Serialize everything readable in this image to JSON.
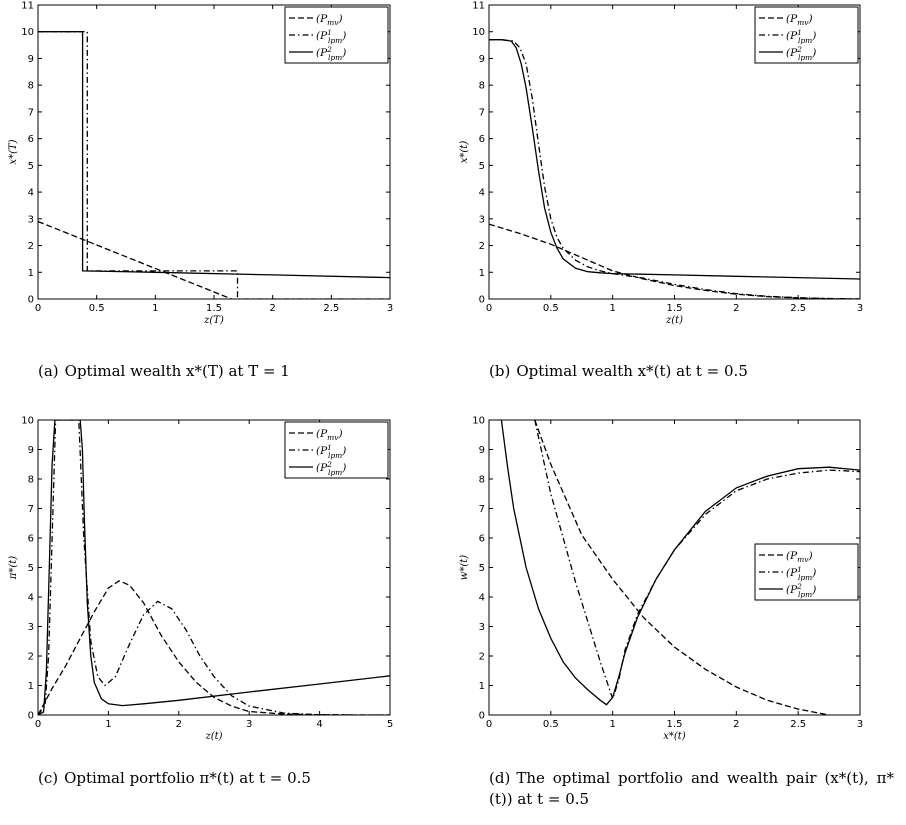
{
  "chart_data": [
    {
      "type": "line",
      "id": "a",
      "caption_label": "(a)",
      "caption": "Optimal wealth x*(T) at T = 1",
      "xlabel": "z(T)",
      "ylabel": "x*(T)",
      "xlim": [
        0,
        3
      ],
      "ylim": [
        0,
        11
      ],
      "xticks": [
        "0",
        "0.5",
        "1",
        "1.5",
        "2",
        "2.5",
        "3"
      ],
      "yticks": [
        "0",
        "1",
        "2",
        "3",
        "4",
        "5",
        "6",
        "7",
        "8",
        "9",
        "10",
        "11"
      ],
      "legend_position": "top-right",
      "series": [
        {
          "name": "(P_mv)",
          "style": "dashed",
          "x": [
            0,
            1.65
          ],
          "y": [
            2.9,
            0
          ]
        },
        {
          "name": "(P^1_lpm)",
          "style": "dashdot",
          "x": [
            0,
            0.42,
            0.42,
            1.7,
            1.7,
            3
          ],
          "y": [
            10,
            10,
            1.05,
            1.05,
            0,
            0
          ]
        },
        {
          "name": "(P^2_lpm)",
          "style": "solid",
          "x": [
            0,
            0.38,
            0.38,
            1.0,
            2.0,
            3.0
          ],
          "y": [
            10,
            10,
            1.05,
            1.0,
            0.9,
            0.8
          ]
        }
      ]
    },
    {
      "type": "line",
      "id": "b",
      "caption_label": "(b)",
      "caption": "Optimal wealth x*(t) at t = 0.5",
      "xlabel": "z(t)",
      "ylabel": "x*(t)",
      "xlim": [
        0,
        3
      ],
      "ylim": [
        0,
        11
      ],
      "xticks": [
        "0",
        "0.5",
        "1",
        "1.5",
        "2",
        "2.5",
        "3"
      ],
      "yticks": [
        "0",
        "1",
        "2",
        "3",
        "4",
        "5",
        "6",
        "7",
        "8",
        "9",
        "10",
        "11"
      ],
      "legend_position": "top-right",
      "series": [
        {
          "name": "(P_mv)",
          "style": "dashed",
          "x": [
            0,
            0.25,
            0.5,
            0.75,
            1.0,
            1.25,
            1.5,
            1.75,
            2.0,
            2.25,
            2.5,
            2.75,
            3.0
          ],
          "y": [
            2.8,
            2.45,
            2.05,
            1.55,
            1.05,
            0.75,
            0.5,
            0.32,
            0.18,
            0.09,
            0.04,
            0.01,
            0
          ]
        },
        {
          "name": "(P^1_lpm)",
          "style": "dashdot",
          "x": [
            0,
            0.1,
            0.2,
            0.25,
            0.3,
            0.35,
            0.4,
            0.45,
            0.5,
            0.55,
            0.6,
            0.7,
            0.8,
            0.9,
            1.0,
            1.25,
            1.5,
            1.75,
            2.0,
            2.25,
            2.5,
            2.75,
            3.0
          ],
          "y": [
            9.7,
            9.7,
            9.65,
            9.4,
            8.8,
            7.5,
            5.8,
            4.2,
            3.0,
            2.3,
            1.9,
            1.45,
            1.2,
            1.05,
            0.95,
            0.78,
            0.55,
            0.35,
            0.2,
            0.1,
            0.05,
            0.02,
            0
          ]
        },
        {
          "name": "(P^2_lpm)",
          "style": "solid",
          "x": [
            0,
            0.1,
            0.18,
            0.22,
            0.26,
            0.3,
            0.35,
            0.4,
            0.45,
            0.5,
            0.55,
            0.6,
            0.7,
            0.8,
            0.9,
            1.0,
            1.5,
            2.0,
            2.5,
            3.0
          ],
          "y": [
            9.7,
            9.7,
            9.65,
            9.4,
            8.8,
            7.9,
            6.4,
            4.8,
            3.4,
            2.5,
            1.9,
            1.5,
            1.15,
            1.02,
            0.98,
            0.95,
            0.9,
            0.85,
            0.8,
            0.75
          ]
        }
      ]
    },
    {
      "type": "line",
      "id": "c",
      "caption_label": "(c)",
      "caption": "Optimal portfolio π*(t) at t = 0.5",
      "xlabel": "z(t)",
      "ylabel": "π*(t)",
      "xlim": [
        0,
        5
      ],
      "ylim": [
        0,
        10
      ],
      "xticks": [
        "0",
        "1",
        "2",
        "3",
        "4",
        "5"
      ],
      "yticks": [
        "0",
        "1",
        "2",
        "3",
        "4",
        "5",
        "6",
        "7",
        "8",
        "9",
        "10"
      ],
      "legend_position": "top-right",
      "series": [
        {
          "name": "(P_mv)",
          "style": "dashed",
          "x": [
            0,
            0.2,
            0.4,
            0.6,
            0.8,
            1.0,
            1.15,
            1.3,
            1.5,
            1.75,
            2.0,
            2.25,
            2.5,
            2.75,
            3.0,
            3.5,
            4.0,
            4.5,
            5.0
          ],
          "y": [
            0,
            0.9,
            1.7,
            2.6,
            3.5,
            4.3,
            4.55,
            4.4,
            3.8,
            2.7,
            1.8,
            1.1,
            0.6,
            0.3,
            0.12,
            0.03,
            0.01,
            0,
            0
          ]
        },
        {
          "name": "(P^1_lpm)",
          "style": "dashdot",
          "x": [
            0,
            0.1,
            0.15,
            0.2,
            0.25,
            0.3,
            0.4,
            0.5,
            0.58,
            0.65,
            0.75,
            0.85,
            0.95,
            1.1,
            1.3,
            1.5,
            1.7,
            1.9,
            2.1,
            2.3,
            2.5,
            2.75,
            3.0,
            3.5,
            4.0,
            4.5,
            5.0
          ],
          "y": [
            0,
            0.3,
            2.0,
            6.0,
            10,
            10,
            10,
            10,
            10,
            6.0,
            2.5,
            1.3,
            1.0,
            1.3,
            2.4,
            3.4,
            3.85,
            3.6,
            2.9,
            2.0,
            1.3,
            0.65,
            0.3,
            0.06,
            0.01,
            0,
            0
          ]
        },
        {
          "name": "(P^2_lpm)",
          "style": "solid",
          "x": [
            0,
            0.08,
            0.12,
            0.16,
            0.2,
            0.24,
            0.26,
            0.3,
            0.5,
            0.6,
            0.63,
            0.66,
            0.7,
            0.75,
            0.8,
            0.9,
            1.0,
            1.2,
            1.5,
            2.0,
            3.0,
            4.0,
            5.0
          ],
          "y": [
            0,
            0.1,
            1.5,
            5.0,
            8.5,
            10,
            10,
            10,
            10,
            10,
            9.0,
            6.5,
            3.8,
            2.0,
            1.1,
            0.55,
            0.38,
            0.32,
            0.38,
            0.5,
            0.78,
            1.05,
            1.33
          ]
        }
      ]
    },
    {
      "type": "line",
      "id": "d",
      "caption_label": "(d)",
      "caption": "The optimal portfolio and wealth pair (x*(t), π*(t)) at t = 0.5",
      "xlabel": "x*(t)",
      "ylabel": "w*(t)",
      "xlim": [
        0,
        3
      ],
      "ylim": [
        0,
        10
      ],
      "xticks": [
        "0",
        "0.5",
        "1",
        "1.5",
        "2",
        "2.5",
        "3"
      ],
      "yticks": [
        "0",
        "1",
        "2",
        "3",
        "4",
        "5",
        "6",
        "7",
        "8",
        "9",
        "10"
      ],
      "legend_position": "center-right",
      "series": [
        {
          "name": "(P_mv)",
          "style": "dashed",
          "x": [
            0.37,
            0.5,
            0.75,
            1.0,
            1.25,
            1.5,
            1.75,
            2.0,
            2.25,
            2.5,
            2.75
          ],
          "y": [
            10,
            8.5,
            6.1,
            4.6,
            3.3,
            2.3,
            1.55,
            0.95,
            0.5,
            0.2,
            0
          ]
        },
        {
          "name": "(P^1_lpm)",
          "style": "dashdot",
          "x": [
            0.37,
            0.5,
            0.7,
            0.9,
            0.98,
            1.0,
            1.05,
            1.1,
            1.2,
            1.35,
            1.5,
            1.75,
            2.0,
            2.25,
            2.5,
            2.75,
            3.0
          ],
          "y": [
            10,
            7.5,
            4.5,
            1.8,
            0.8,
            0.55,
            1.2,
            2.2,
            3.4,
            4.6,
            5.6,
            6.8,
            7.6,
            8.0,
            8.2,
            8.3,
            8.25
          ]
        },
        {
          "name": "(P^2_lpm)",
          "style": "solid",
          "x": [
            0.1,
            0.15,
            0.2,
            0.3,
            0.4,
            0.5,
            0.6,
            0.7,
            0.8,
            0.9,
            0.95,
            1.0,
            1.05,
            1.1,
            1.2,
            1.35,
            1.5,
            1.75,
            2.0,
            2.25,
            2.5,
            2.75,
            3.0
          ],
          "y": [
            10,
            8.4,
            7.0,
            5.0,
            3.6,
            2.6,
            1.8,
            1.25,
            0.85,
            0.5,
            0.35,
            0.6,
            1.3,
            2.1,
            3.3,
            4.6,
            5.6,
            6.9,
            7.7,
            8.1,
            8.35,
            8.4,
            8.3
          ]
        }
      ]
    }
  ]
}
